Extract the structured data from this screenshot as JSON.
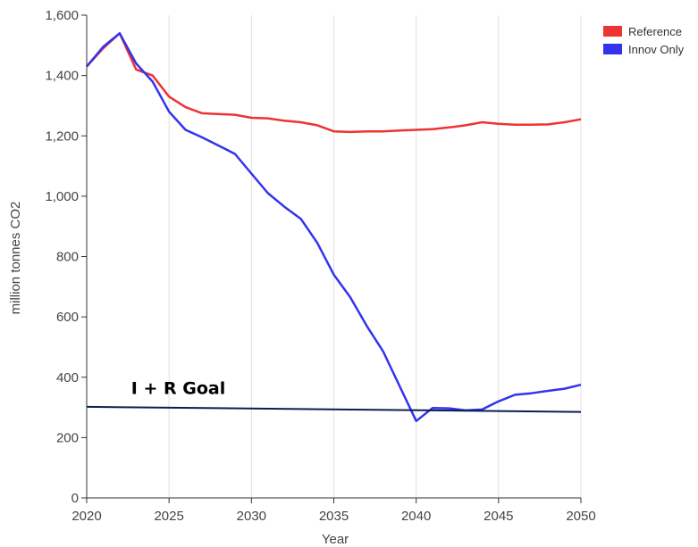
{
  "chart_data": {
    "type": "line",
    "xlabel": "Year",
    "ylabel": "million tonnes CO2",
    "xlim": [
      2020,
      2050
    ],
    "ylim": [
      0,
      1600
    ],
    "grid": "vertical",
    "legend": "top-right",
    "x_ticks": [
      2020,
      2025,
      2030,
      2035,
      2040,
      2045,
      2050
    ],
    "y_ticks": [
      0,
      200,
      400,
      600,
      800,
      1000,
      1200,
      1400,
      1600
    ],
    "x_tick_labels": [
      "2020",
      "2025",
      "2030",
      "2035",
      "2040",
      "2045",
      "2050"
    ],
    "y_tick_labels": [
      "0",
      "200",
      "400",
      "600",
      "800",
      "1,000",
      "1,200",
      "1,400",
      "1,600"
    ],
    "x": [
      2020,
      2021,
      2022,
      2023,
      2024,
      2025,
      2026,
      2027,
      2028,
      2029,
      2030,
      2031,
      2032,
      2033,
      2034,
      2035,
      2036,
      2037,
      2038,
      2039,
      2040,
      2041,
      2042,
      2043,
      2044,
      2045,
      2046,
      2047,
      2048,
      2049,
      2050
    ],
    "series": [
      {
        "name": "Reference",
        "color": "#ee3333",
        "values": [
          1430,
          1490,
          1540,
          1420,
          1400,
          1330,
          1295,
          1275,
          1272,
          1270,
          1260,
          1258,
          1250,
          1245,
          1235,
          1215,
          1213,
          1215,
          1215,
          1218,
          1220,
          1222,
          1228,
          1235,
          1245,
          1240,
          1237,
          1237,
          1238,
          1245,
          1255
        ]
      },
      {
        "name": "Innov Only",
        "color": "#3333ee",
        "values": [
          1430,
          1495,
          1540,
          1440,
          1380,
          1280,
          1220,
          1195,
          1168,
          1140,
          1075,
          1010,
          965,
          925,
          845,
          740,
          665,
          570,
          485,
          370,
          255,
          298,
          297,
          290,
          293,
          320,
          342,
          347,
          355,
          362,
          375
        ]
      }
    ],
    "annotations": [
      {
        "text": "I + R Goal",
        "line": {
          "x": [
            2020,
            2050
          ],
          "y": [
            302,
            285
          ],
          "color": "#0a1f4f"
        },
        "label_at": {
          "x": 2022.7,
          "y": 345
        }
      }
    ]
  }
}
